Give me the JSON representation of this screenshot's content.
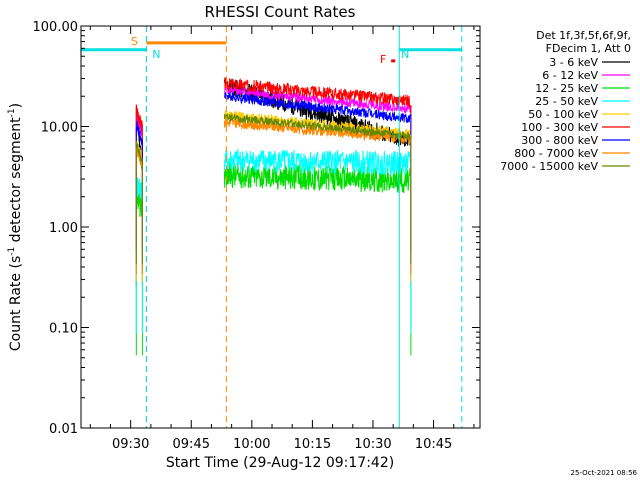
{
  "chart_data": {
    "type": "line",
    "title": "RHESSI Count Rates",
    "xlabel": "Start Time (29-Aug-12 09:17:42)",
    "ylabel_parts": [
      "Count Rate (s",
      "-1",
      " detector segment",
      "-1",
      ")"
    ],
    "y_scale": "log",
    "ylim": [
      0.01,
      100
    ],
    "yticks": [
      {
        "value": 0.01,
        "label": "0.01"
      },
      {
        "value": 0.1,
        "label": "0.10"
      },
      {
        "value": 1,
        "label": "1.00"
      },
      {
        "value": 10,
        "label": "10.00"
      },
      {
        "value": 100,
        "label": "100.00"
      }
    ],
    "x_unit": "minutes",
    "xlim": [
      "09:17:42",
      "10:56:30"
    ],
    "xticks": [
      "09:30",
      "09:45",
      "10:00",
      "10:15",
      "10:30",
      "10:45"
    ],
    "legend_header": [
      "Det 1f,3f,5f,6f,9f,",
      "FDecim 1, Att 0"
    ],
    "legend_placement": "right",
    "series": [
      {
        "name": "3 - 6 keV",
        "color": "#000000",
        "level": 26.0,
        "end": 7.0,
        "noise": 0.09,
        "seed": 11
      },
      {
        "name": "6 - 12 keV",
        "color": "#ff00ff",
        "level": 23.0,
        "end": 15.0,
        "noise": 0.05,
        "seed": 23
      },
      {
        "name": "12 - 25 keV",
        "color": "#00dd00",
        "level": 3.3,
        "end": 2.9,
        "noise": 0.13,
        "seed": 37
      },
      {
        "name": "25 - 50 keV",
        "color": "#00ffff",
        "level": 4.6,
        "end": 4.3,
        "noise": 0.12,
        "seed": 41
      },
      {
        "name": "50 - 100 keV",
        "color": "#ffcc00",
        "level": 13.0,
        "end": 8.5,
        "noise": 0.05,
        "seed": 53
      },
      {
        "name": "100 - 300 keV",
        "color": "#ff0000",
        "level": 27.0,
        "end": 18.0,
        "noise": 0.06,
        "seed": 67
      },
      {
        "name": "300 - 800 keV",
        "color": "#0000ff",
        "level": 20.0,
        "end": 12.0,
        "noise": 0.05,
        "seed": 71
      },
      {
        "name": "800 - 7000 keV",
        "color": "#ff8800",
        "level": 11.0,
        "end": 7.5,
        "noise": 0.05,
        "seed": 83
      },
      {
        "name": "7000 - 15000 keV",
        "color": "#668800",
        "level": 12.5,
        "end": 8.0,
        "noise": 0.04,
        "seed": 97
      }
    ],
    "segments": [
      {
        "start": "09:31:24",
        "end": "09:32:54"
      },
      {
        "start": "09:53:12",
        "end": "10:39:24"
      }
    ],
    "flags": [
      {
        "label": "S",
        "color": "#ff8800",
        "start": "09:33:54",
        "end": "09:53:42",
        "level": 68.0,
        "marker": "dashed-bounds"
      },
      {
        "label": "N",
        "color": "#00e0e0",
        "start": "09:17:42",
        "end": "09:33:54",
        "level": 58.0
      },
      {
        "label": "N",
        "color": "#00e0e0",
        "start": "10:36:30",
        "end": "10:52:00",
        "level": 58.0,
        "marker": "dashed-end"
      },
      {
        "label": "F",
        "color": "#ff0000",
        "start": "10:34:30",
        "end": "10:35:30",
        "level": 45.0
      }
    ],
    "date_stamp": "25-Oct-2021 08:56"
  }
}
